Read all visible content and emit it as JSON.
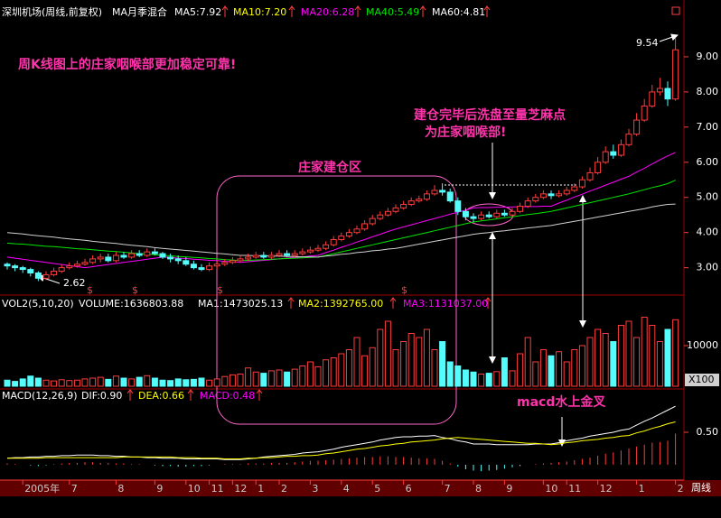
{
  "chart_data": [
    {
      "type": "candlestick",
      "title": "深圳机场(周线,前复权)",
      "subtitle": "MA月季混合",
      "open": [
        3.1,
        3.05,
        3.0,
        2.95,
        2.85,
        2.7,
        2.8,
        2.9,
        3.0,
        3.05,
        3.1,
        3.15,
        3.25,
        3.3,
        3.2,
        3.35,
        3.3,
        3.4,
        3.35,
        3.45,
        3.4,
        3.3,
        3.25,
        3.2,
        3.1,
        3.0,
        2.95,
        3.05,
        3.1,
        3.15,
        3.2,
        3.25,
        3.3,
        3.35,
        3.3,
        3.35,
        3.4,
        3.35,
        3.4,
        3.45,
        3.5,
        3.55,
        3.65,
        3.8,
        3.9,
        4.0,
        4.1,
        4.25,
        4.4,
        4.5,
        4.6,
        4.7,
        4.8,
        4.9,
        4.95,
        5.1,
        5.2,
        5.15,
        4.9,
        4.6,
        4.45,
        4.4,
        4.5,
        4.45,
        4.55,
        4.5,
        4.6,
        4.75,
        4.9,
        5.0,
        5.1,
        5.05,
        5.1,
        5.2,
        5.3,
        5.5,
        5.7,
        6.0,
        6.3,
        6.2,
        6.5,
        6.8,
        7.2,
        7.6,
        8.0,
        8.1,
        7.8
      ],
      "high": [
        3.15,
        3.1,
        3.05,
        3.0,
        2.9,
        2.9,
        3.0,
        3.1,
        3.15,
        3.2,
        3.25,
        3.35,
        3.4,
        3.4,
        3.45,
        3.45,
        3.5,
        3.5,
        3.55,
        3.55,
        3.45,
        3.4,
        3.35,
        3.3,
        3.2,
        3.1,
        3.15,
        3.2,
        3.25,
        3.3,
        3.35,
        3.4,
        3.45,
        3.45,
        3.45,
        3.5,
        3.5,
        3.5,
        3.55,
        3.6,
        3.65,
        3.75,
        3.9,
        4.0,
        4.1,
        4.2,
        4.35,
        4.5,
        4.6,
        4.7,
        4.8,
        4.9,
        5.0,
        5.05,
        5.2,
        5.35,
        5.4,
        5.25,
        5.0,
        4.7,
        4.55,
        4.6,
        4.6,
        4.65,
        4.65,
        4.7,
        4.85,
        5.0,
        5.1,
        5.2,
        5.2,
        5.2,
        5.3,
        5.4,
        5.6,
        5.85,
        6.15,
        6.45,
        6.5,
        6.65,
        6.95,
        7.4,
        7.8,
        8.2,
        8.4,
        8.3,
        9.54
      ],
      "low": [
        2.95,
        2.9,
        2.85,
        2.75,
        2.62,
        2.65,
        2.75,
        2.85,
        2.95,
        3.0,
        3.05,
        3.1,
        3.15,
        3.15,
        3.15,
        3.25,
        3.25,
        3.3,
        3.3,
        3.35,
        3.25,
        3.15,
        3.1,
        3.05,
        2.95,
        2.9,
        2.9,
        2.95,
        3.05,
        3.1,
        3.15,
        3.2,
        3.25,
        3.25,
        3.25,
        3.3,
        3.3,
        3.3,
        3.35,
        3.4,
        3.45,
        3.5,
        3.6,
        3.75,
        3.85,
        3.95,
        4.05,
        4.2,
        4.35,
        4.45,
        4.55,
        4.65,
        4.75,
        4.85,
        4.9,
        5.05,
        5.05,
        4.85,
        4.5,
        4.35,
        4.3,
        4.35,
        4.4,
        4.4,
        4.45,
        4.45,
        4.55,
        4.7,
        4.85,
        4.95,
        4.95,
        5.0,
        5.05,
        5.15,
        5.25,
        5.45,
        5.65,
        5.95,
        6.1,
        6.15,
        6.45,
        6.75,
        7.15,
        7.55,
        7.9,
        7.6,
        7.75
      ],
      "close": [
        3.05,
        3.0,
        2.95,
        2.85,
        2.7,
        2.8,
        2.9,
        3.0,
        3.05,
        3.1,
        3.15,
        3.25,
        3.3,
        3.2,
        3.35,
        3.3,
        3.4,
        3.35,
        3.45,
        3.4,
        3.3,
        3.25,
        3.2,
        3.1,
        3.0,
        2.95,
        3.05,
        3.1,
        3.15,
        3.2,
        3.25,
        3.3,
        3.35,
        3.3,
        3.35,
        3.4,
        3.35,
        3.4,
        3.45,
        3.5,
        3.55,
        3.65,
        3.8,
        3.9,
        4.0,
        4.1,
        4.25,
        4.4,
        4.5,
        4.6,
        4.7,
        4.8,
        4.9,
        4.95,
        5.1,
        5.2,
        5.15,
        4.9,
        4.6,
        4.45,
        4.4,
        4.5,
        4.45,
        4.55,
        4.5,
        4.6,
        4.75,
        4.9,
        5.0,
        5.1,
        5.05,
        5.1,
        5.2,
        5.3,
        5.5,
        5.7,
        6.0,
        6.3,
        6.2,
        6.5,
        6.8,
        7.2,
        7.6,
        8.0,
        8.1,
        7.8,
        9.2
      ],
      "up_color": "#ff3c3c",
      "down_color": "#54fcfc",
      "series": [
        {
          "name": "MA5:7.92",
          "color": "#ffffff"
        },
        {
          "name": "MA10:7.20",
          "color": "#ffff00"
        },
        {
          "name": "MA20:6.28",
          "color": "#ff00ff",
          "values": [
            3.3,
            3.27,
            3.24,
            3.21,
            3.18,
            3.15,
            3.12,
            3.09,
            3.06,
            3.03,
            3.0,
            3.03,
            3.06,
            3.09,
            3.12,
            3.15,
            3.18,
            3.21,
            3.24,
            3.27,
            3.3,
            3.29,
            3.27,
            3.26,
            3.24,
            3.23,
            3.21,
            3.2,
            3.18,
            3.17,
            3.15,
            3.17,
            3.19,
            3.21,
            3.23,
            3.25,
            3.27,
            3.29,
            3.31,
            3.33,
            3.35,
            3.43,
            3.5,
            3.58,
            3.65,
            3.73,
            3.8,
            3.88,
            3.95,
            4.03,
            4.1,
            4.16,
            4.22,
            4.28,
            4.34,
            4.4,
            4.46,
            4.52,
            4.58,
            4.64,
            4.7,
            4.71,
            4.71,
            4.72,
            4.72,
            4.73,
            4.73,
            4.74,
            4.74,
            4.75,
            4.75,
            4.84,
            4.92,
            5.01,
            5.09,
            5.18,
            5.26,
            5.35,
            5.43,
            5.52,
            5.6,
            5.72,
            5.83,
            5.95,
            6.07,
            6.18,
            6.28
          ]
        },
        {
          "name": "MA40:5.49",
          "color": "#00e600",
          "values": [
            3.7,
            3.68,
            3.67,
            3.65,
            3.63,
            3.61,
            3.6,
            3.58,
            3.56,
            3.54,
            3.53,
            3.51,
            3.49,
            3.47,
            3.46,
            3.44,
            3.42,
            3.4,
            3.39,
            3.37,
            3.35,
            3.34,
            3.32,
            3.31,
            3.29,
            3.28,
            3.26,
            3.25,
            3.23,
            3.22,
            3.2,
            3.21,
            3.22,
            3.23,
            3.24,
            3.25,
            3.26,
            3.27,
            3.28,
            3.29,
            3.3,
            3.35,
            3.4,
            3.45,
            3.5,
            3.55,
            3.6,
            3.65,
            3.7,
            3.75,
            3.8,
            3.85,
            3.9,
            3.95,
            4.0,
            4.05,
            4.1,
            4.15,
            4.2,
            4.25,
            4.3,
            4.33,
            4.36,
            4.39,
            4.42,
            4.45,
            4.48,
            4.51,
            4.54,
            4.57,
            4.6,
            4.65,
            4.7,
            4.75,
            4.8,
            4.85,
            4.9,
            4.95,
            5.0,
            5.05,
            5.1,
            5.16,
            5.22,
            5.28,
            5.33,
            5.39,
            5.49
          ]
        },
        {
          "name": "MA60:4.81",
          "color": "#d0d0d0",
          "values": [
            4.0,
            3.98,
            3.96,
            3.93,
            3.91,
            3.89,
            3.87,
            3.84,
            3.82,
            3.8,
            3.78,
            3.75,
            3.73,
            3.71,
            3.69,
            3.66,
            3.64,
            3.62,
            3.6,
            3.57,
            3.55,
            3.53,
            3.51,
            3.49,
            3.47,
            3.45,
            3.43,
            3.41,
            3.39,
            3.37,
            3.35,
            3.35,
            3.34,
            3.34,
            3.33,
            3.33,
            3.32,
            3.32,
            3.31,
            3.31,
            3.3,
            3.33,
            3.35,
            3.38,
            3.4,
            3.43,
            3.45,
            3.48,
            3.5,
            3.53,
            3.55,
            3.59,
            3.63,
            3.67,
            3.71,
            3.75,
            3.79,
            3.83,
            3.87,
            3.91,
            3.95,
            3.98,
            4.0,
            4.03,
            4.05,
            4.08,
            4.1,
            4.13,
            4.15,
            4.18,
            4.2,
            4.24,
            4.28,
            4.32,
            4.36,
            4.4,
            4.44,
            4.48,
            4.52,
            4.56,
            4.6,
            4.64,
            4.68,
            4.73,
            4.77,
            4.8,
            4.81
          ]
        }
      ],
      "ylim": [
        2.4,
        10
      ],
      "yticks": [
        {
          "value": 3,
          "label": "3.00"
        },
        {
          "value": 4,
          "label": "4.00"
        },
        {
          "value": 5,
          "label": "5.00"
        },
        {
          "value": 6,
          "label": "6.00"
        },
        {
          "value": 7,
          "label": "7.00"
        },
        {
          "value": 8,
          "label": "8.00"
        },
        {
          "value": 9,
          "label": "9.00"
        }
      ],
      "annotations": [
        "周K线图上的庄家咽喉部更加稳定可靠!",
        "庄家建仓区",
        "建仓完毕后洗盘至量芝麻点",
        "为庄家咽喉部!"
      ],
      "high_label": "9.54",
      "low_label": "2.62",
      "markers": [
        "$",
        "$",
        "$",
        "$"
      ]
    },
    {
      "type": "bar",
      "title": "VOL2(5,10,20)",
      "subtitle": "VOLUME:1636803.88",
      "values": [
        1500,
        1200,
        1800,
        2500,
        2000,
        1500,
        1300,
        1600,
        1400,
        1500,
        1800,
        2000,
        2200,
        1700,
        2500,
        2000,
        1800,
        2200,
        2600,
        2000,
        1500,
        1400,
        1800,
        1600,
        1700,
        2000,
        1500,
        1800,
        2400,
        2800,
        3000,
        4500,
        3500,
        3200,
        3800,
        4000,
        3500,
        4200,
        5000,
        6000,
        4800,
        6500,
        7000,
        8000,
        9000,
        12000,
        7500,
        9500,
        14000,
        16000,
        9000,
        11000,
        13000,
        12000,
        14000,
        9000,
        11000,
        6000,
        5000,
        4000,
        3500,
        3000,
        3200,
        3600,
        7000,
        3800,
        8000,
        12000,
        6000,
        9000,
        7500,
        8500,
        6000,
        9000,
        10000,
        12000,
        14000,
        13000,
        11000,
        15000,
        16000,
        12000,
        17000,
        15000,
        11000,
        14000,
        16368
      ],
      "series": [
        {
          "name": "MA1:1473025.13",
          "color": "#ffffff"
        },
        {
          "name": "MA2:1392765.00",
          "color": "#ffff00"
        },
        {
          "name": "MA3:1131037.00",
          "color": "#ff00ff"
        }
      ],
      "ylim": [
        0,
        20000
      ],
      "yticks": [
        10000
      ],
      "unit": "X100"
    },
    {
      "type": "macd",
      "title": "MACD(12,26,9)",
      "series": [
        {
          "name": "DIF:0.90",
          "color": "#ffffff",
          "values": [
            0.1,
            0.11,
            0.11,
            0.12,
            0.12,
            0.13,
            0.13,
            0.14,
            0.14,
            0.15,
            0.15,
            0.15,
            0.14,
            0.14,
            0.13,
            0.13,
            0.12,
            0.12,
            0.11,
            0.11,
            0.1,
            0.1,
            0.1,
            0.09,
            0.09,
            0.09,
            0.09,
            0.09,
            0.08,
            0.08,
            0.08,
            0.09,
            0.1,
            0.12,
            0.13,
            0.14,
            0.15,
            0.16,
            0.18,
            0.19,
            0.2,
            0.22,
            0.24,
            0.27,
            0.29,
            0.31,
            0.33,
            0.35,
            0.38,
            0.4,
            0.42,
            0.43,
            0.43,
            0.44,
            0.44,
            0.45,
            0.42,
            0.4,
            0.37,
            0.35,
            0.32,
            0.32,
            0.32,
            0.31,
            0.31,
            0.31,
            0.31,
            0.31,
            0.32,
            0.32,
            0.32,
            0.34,
            0.37,
            0.39,
            0.41,
            0.44,
            0.46,
            0.48,
            0.5,
            0.53,
            0.55,
            0.61,
            0.67,
            0.72,
            0.78,
            0.84,
            0.9
          ]
        },
        {
          "name": "DEA:0.66",
          "color": "#ffff00",
          "values": [
            0.1,
            0.1,
            0.1,
            0.1,
            0.1,
            0.11,
            0.11,
            0.11,
            0.11,
            0.11,
            0.11,
            0.11,
            0.11,
            0.11,
            0.11,
            0.12,
            0.12,
            0.12,
            0.12,
            0.12,
            0.12,
            0.12,
            0.11,
            0.11,
            0.11,
            0.1,
            0.1,
            0.1,
            0.09,
            0.09,
            0.09,
            0.1,
            0.1,
            0.11,
            0.11,
            0.12,
            0.13,
            0.13,
            0.14,
            0.14,
            0.15,
            0.17,
            0.18,
            0.2,
            0.22,
            0.24,
            0.25,
            0.27,
            0.29,
            0.3,
            0.32,
            0.33,
            0.35,
            0.36,
            0.37,
            0.38,
            0.4,
            0.41,
            0.42,
            0.41,
            0.4,
            0.39,
            0.38,
            0.37,
            0.36,
            0.35,
            0.34,
            0.33,
            0.33,
            0.32,
            0.31,
            0.32,
            0.34,
            0.35,
            0.37,
            0.38,
            0.39,
            0.41,
            0.42,
            0.44,
            0.45,
            0.49,
            0.52,
            0.56,
            0.59,
            0.63,
            0.66
          ]
        },
        {
          "name": "MACD:0.48",
          "color": "#ff00ff",
          "style": "bar",
          "values": [
            0.02,
            0.01,
            0.0,
            -0.01,
            -0.02,
            -0.01,
            0.01,
            0.02,
            0.03,
            0.03,
            0.04,
            0.04,
            0.03,
            0.03,
            0.02,
            0.02,
            0.01,
            0.01,
            0.0,
            -0.01,
            -0.02,
            -0.02,
            -0.03,
            -0.03,
            -0.02,
            -0.02,
            -0.01,
            0.0,
            0.01,
            0.01,
            0.01,
            0.02,
            0.02,
            0.02,
            0.03,
            0.03,
            0.03,
            0.04,
            0.05,
            0.06,
            0.06,
            0.07,
            0.08,
            0.09,
            0.1,
            0.11,
            0.12,
            0.12,
            0.13,
            0.13,
            0.12,
            0.12,
            0.11,
            0.1,
            0.1,
            0.09,
            0.06,
            0.02,
            -0.03,
            -0.07,
            -0.09,
            -0.1,
            -0.09,
            -0.08,
            -0.06,
            -0.04,
            -0.02,
            0.0,
            0.01,
            0.02,
            0.03,
            0.04,
            0.05,
            0.07,
            0.09,
            0.11,
            0.14,
            0.17,
            0.19,
            0.22,
            0.25,
            0.28,
            0.31,
            0.34,
            0.35,
            0.37,
            0.48
          ]
        }
      ],
      "ylim": [
        -0.2,
        1.0
      ],
      "yticks": [
        {
          "value": 0.5,
          "label": "0.50"
        }
      ],
      "categories": [
        null,
        null,
        "2005年",
        null,
        null,
        null,
        null,
        null,
        "7",
        null,
        null,
        null,
        null,
        null,
        "8",
        null,
        null,
        null,
        null,
        "9",
        null,
        null,
        null,
        "10",
        null,
        null,
        "11",
        null,
        null,
        "12",
        null,
        null,
        "1",
        null,
        null,
        "2",
        null,
        null,
        null,
        "3",
        null,
        null,
        null,
        "4",
        null,
        null,
        null,
        "5",
        null,
        null,
        null,
        "6",
        null,
        null,
        null,
        null,
        "7",
        null,
        null,
        null,
        "8",
        null,
        null,
        null,
        "9",
        null,
        null,
        null,
        null,
        "10",
        null,
        null,
        "11",
        null,
        null,
        null,
        "12",
        null,
        null,
        null,
        null,
        "1",
        null,
        null,
        null,
        null,
        "2"
      ],
      "xlabel": "周线",
      "annotations": [
        "macd水上金叉"
      ]
    }
  ]
}
